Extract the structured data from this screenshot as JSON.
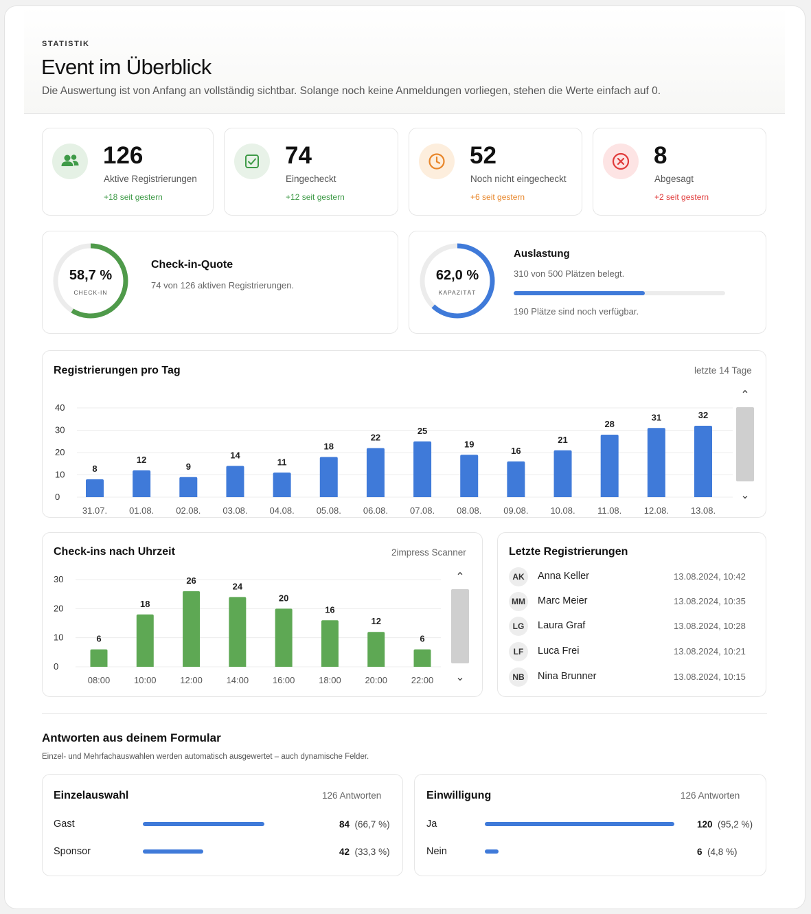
{
  "header": {
    "eyebrow": "STATISTIK",
    "title": "Event im Überblick",
    "subtitle": "Die Auswertung ist von Anfang an vollständig sichtbar. Solange noch keine Anmeldungen vorliegen, stehen die Werte einfach auf 0."
  },
  "stats": [
    {
      "value": "126",
      "label": "Aktive Registrierungen",
      "delta": "+18",
      "delta_suffix": "seit gestern",
      "icon": "users-icon",
      "color": "#3e9a47"
    },
    {
      "value": "74",
      "label": "Eingecheckt",
      "delta": "+12",
      "delta_suffix": "seit gestern",
      "icon": "checkbox-icon",
      "color": "#3e9a47"
    },
    {
      "value": "52",
      "label": "Noch nicht eingecheckt",
      "delta": "+6",
      "delta_suffix": "seit gestern",
      "icon": "clock-icon",
      "color": "#e8862a"
    },
    {
      "value": "8",
      "label": "Abgesagt",
      "delta": "+2",
      "delta_suffix": "seit gestern",
      "icon": "x-circle-icon",
      "color": "#e03a3a"
    }
  ],
  "checkin_quote": {
    "value": "58,7 %",
    "value_fraction": 0.587,
    "ring_label": "CHECK-IN",
    "title": "Check-in-Quote",
    "text": "74 von 126 aktiven Registrierungen.",
    "color": "#4f9a4a"
  },
  "capacity": {
    "value": "62,0 %",
    "value_fraction": 0.62,
    "ring_label": "KAPAZITÄT",
    "title": "Auslastung",
    "text": "310 von 500 Plätzen belegt.",
    "bar_fraction": 0.62,
    "available": "190 Plätze sind noch verfügbar.",
    "color": "#3f7ad9"
  },
  "registrations_chart": {
    "title": "Registrierungen pro Tag",
    "range_label": "letzte 14 Tage"
  },
  "checkins_chart": {
    "title": "Check-ins nach Uhrzeit",
    "source_label": "2impress Scanner"
  },
  "chart_data": [
    {
      "type": "bar",
      "title": "Registrierungen pro Tag",
      "categories": [
        "31.07.",
        "01.08.",
        "02.08.",
        "03.08.",
        "04.08.",
        "05.08.",
        "06.08.",
        "07.08.",
        "08.08.",
        "09.08.",
        "10.08.",
        "11.08.",
        "12.08.",
        "13.08."
      ],
      "values": [
        8,
        12,
        9,
        14,
        11,
        18,
        22,
        25,
        19,
        16,
        21,
        28,
        31,
        32
      ],
      "yticks": [
        0,
        10,
        20,
        30,
        40
      ],
      "ylim": [
        0,
        40
      ],
      "grid": true,
      "color": "#3f7ad9"
    },
    {
      "type": "bar",
      "title": "Check-ins nach Uhrzeit",
      "categories": [
        "08:00",
        "10:00",
        "12:00",
        "14:00",
        "16:00",
        "18:00",
        "20:00",
        "22:00"
      ],
      "values": [
        6,
        18,
        26,
        24,
        20,
        16,
        12,
        6
      ],
      "yticks": [
        0,
        10,
        20,
        30
      ],
      "ylim": [
        0,
        30
      ],
      "grid": true,
      "color": "#5ea854"
    }
  ],
  "recent": {
    "title": "Letzte Registrierungen",
    "items": [
      {
        "initials": "AK",
        "name": "Anna Keller",
        "time": "13.08.2024, 10:42"
      },
      {
        "initials": "MM",
        "name": "Marc Meier",
        "time": "13.08.2024, 10:35"
      },
      {
        "initials": "LG",
        "name": "Laura Graf",
        "time": "13.08.2024, 10:28"
      },
      {
        "initials": "LF",
        "name": "Luca Frei",
        "time": "13.08.2024, 10:21"
      },
      {
        "initials": "NB",
        "name": "Nina Brunner",
        "time": "13.08.2024, 10:15"
      }
    ]
  },
  "form": {
    "title": "Antworten aus deinem Formular",
    "subtitle": "Einzel- und Mehrfachauswahlen werden automatisch ausgewertet – auch dynamische Felder.",
    "blocks": [
      {
        "title": "Einzelauswahl",
        "count": "126 Antworten",
        "options": [
          {
            "label": "Gast",
            "count": "84",
            "pct": "(66,7 %)",
            "fraction": 0.667
          },
          {
            "label": "Sponsor",
            "count": "42",
            "pct": "(33,3 %)",
            "fraction": 0.333
          }
        ]
      },
      {
        "title": "Einwilligung",
        "count": "126 Antworten",
        "options": [
          {
            "label": "Ja",
            "count": "120",
            "pct": "(95,2 %)",
            "fraction": 0.952
          },
          {
            "label": "Nein",
            "count": "6",
            "pct": "(4,8 %)",
            "fraction": 0.048
          }
        ]
      }
    ]
  }
}
